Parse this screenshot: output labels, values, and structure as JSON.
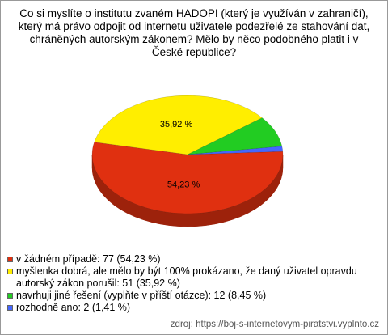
{
  "chart_data": {
    "type": "pie3d",
    "title": "Co si myslíte o institutu zvaném HADOPI (který je využíván v zahraničí), který má právo odpojit od internetu uživatele podezřelé ze stahování dat, chráněných autorským zákonem? Mělo by něco podobného platit i v České republice?",
    "categories": [
      "v žádném případě: 77 (54,23 %)",
      "myšlenka dobrá, ale mělo by být 100% prokázano, že daný uživatel opravdu autorský zákon porušil: 51 (35,92 %)",
      "navrhuji jiné řešení (vyplňte v příští otázce): 12 (8,45 %)",
      "rozhodně ano: 2 (1,41 %)"
    ],
    "values": [
      54.23,
      35.92,
      8.45,
      1.41
    ],
    "value_labels": [
      "54,23 %",
      "35,92 %",
      null,
      null
    ],
    "colors": [
      "#e03010",
      "#ffee00",
      "#22cc22",
      "#4466ff"
    ],
    "source": "zdroj: https://boj-s-internetovym-piratstvi.vyplnto.cz"
  }
}
